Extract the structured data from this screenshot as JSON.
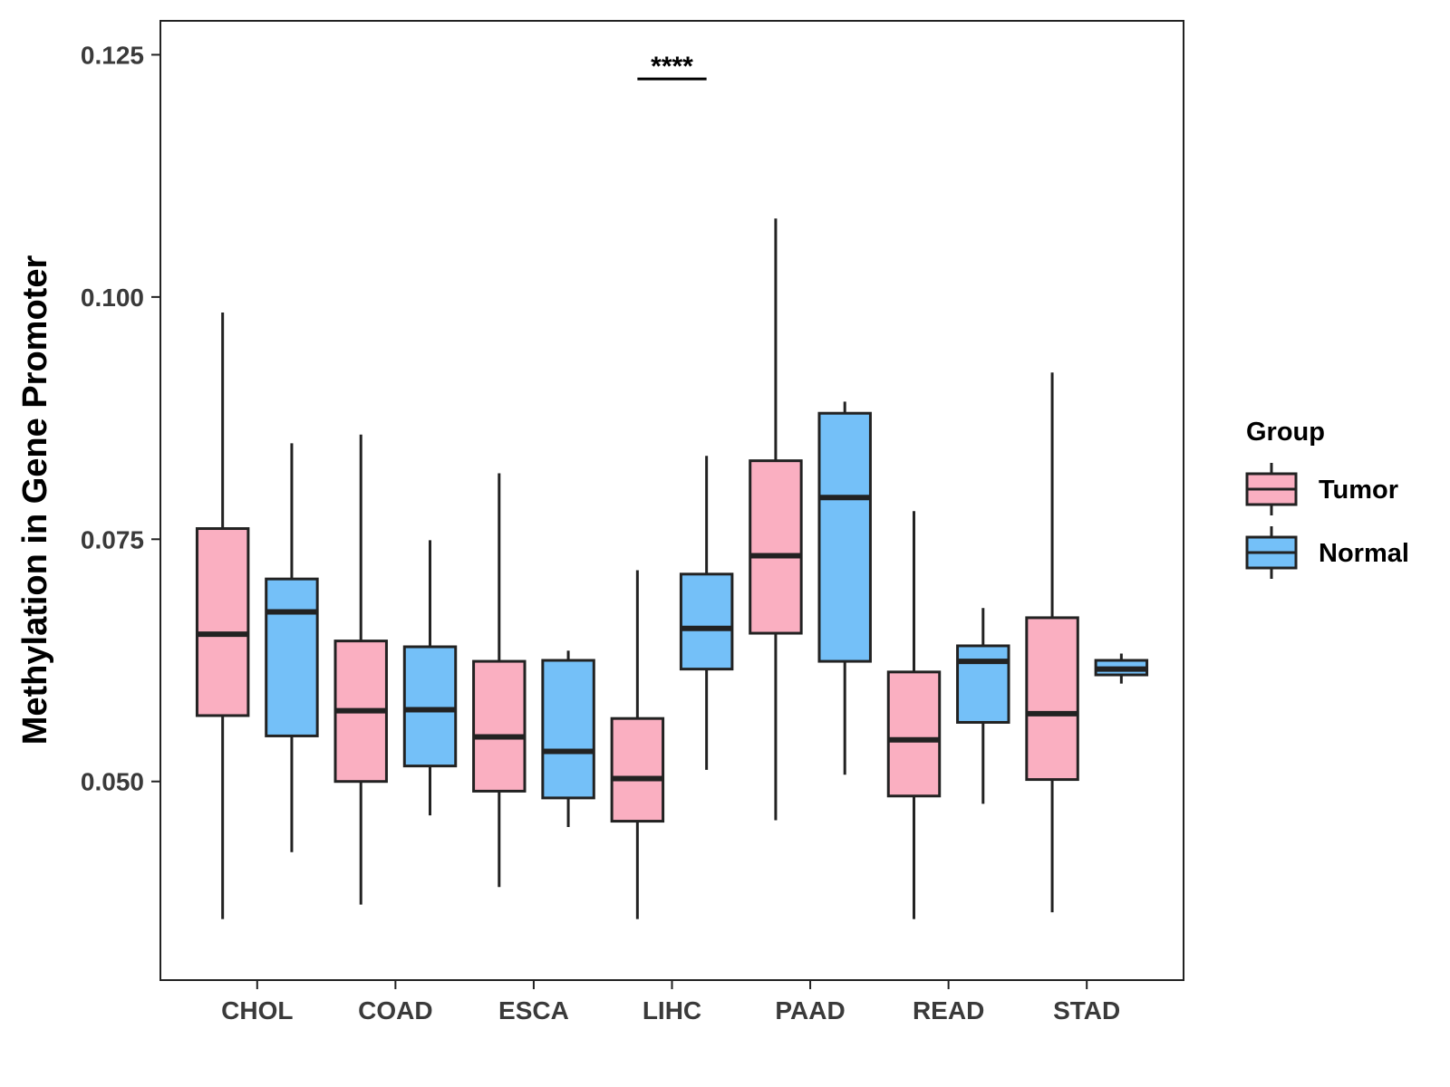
{
  "chart_data": {
    "type": "boxplot",
    "title": "",
    "xlabel": "",
    "ylabel": "Methylation in Gene Promoter",
    "ylim": [
      0.0295,
      0.1285
    ],
    "yticks": [
      0.05,
      0.075,
      0.1,
      0.125
    ],
    "ytick_labels": [
      "0.050",
      "0.075",
      "0.100",
      "0.125"
    ],
    "categories": [
      "CHOL",
      "COAD",
      "ESCA",
      "LIHC",
      "PAAD",
      "READ",
      "STAD"
    ],
    "grid": false,
    "legend": {
      "title": "Group",
      "position": "right"
    },
    "series": [
      {
        "name": "Tumor",
        "color": "#FAAFC1",
        "boxes": [
          {
            "min": 0.0358,
            "q1": 0.0568,
            "median": 0.0652,
            "q3": 0.0761,
            "max": 0.0984
          },
          {
            "min": 0.0373,
            "q1": 0.05,
            "median": 0.0573,
            "q3": 0.0645,
            "max": 0.0858
          },
          {
            "min": 0.0391,
            "q1": 0.049,
            "median": 0.0546,
            "q3": 0.0624,
            "max": 0.0818
          },
          {
            "min": 0.0358,
            "q1": 0.0459,
            "median": 0.0503,
            "q3": 0.0565,
            "max": 0.0718
          },
          {
            "min": 0.046,
            "q1": 0.0653,
            "median": 0.0733,
            "q3": 0.0831,
            "max": 0.1081
          },
          {
            "min": 0.0358,
            "q1": 0.0485,
            "median": 0.0543,
            "q3": 0.0613,
            "max": 0.0779
          },
          {
            "min": 0.0365,
            "q1": 0.0502,
            "median": 0.057,
            "q3": 0.0669,
            "max": 0.0922
          }
        ]
      },
      {
        "name": "Normal",
        "color": "#74C0F8",
        "boxes": [
          {
            "min": 0.0427,
            "q1": 0.0547,
            "median": 0.0675,
            "q3": 0.0709,
            "max": 0.0849
          },
          {
            "min": 0.0465,
            "q1": 0.0516,
            "median": 0.0574,
            "q3": 0.0639,
            "max": 0.0749
          },
          {
            "min": 0.0453,
            "q1": 0.0483,
            "median": 0.0531,
            "q3": 0.0625,
            "max": 0.0635
          },
          {
            "min": 0.0512,
            "q1": 0.0616,
            "median": 0.0658,
            "q3": 0.0714,
            "max": 0.0836
          },
          {
            "min": 0.0507,
            "q1": 0.0624,
            "median": 0.0793,
            "q3": 0.088,
            "max": 0.0892
          },
          {
            "min": 0.0477,
            "q1": 0.0561,
            "median": 0.0624,
            "q3": 0.064,
            "max": 0.0679
          },
          {
            "min": 0.0601,
            "q1": 0.061,
            "median": 0.0616,
            "q3": 0.0625,
            "max": 0.0632
          }
        ]
      }
    ],
    "annotations": [
      {
        "text": "****",
        "category": "LIHC",
        "y": 0.1225
      }
    ]
  }
}
